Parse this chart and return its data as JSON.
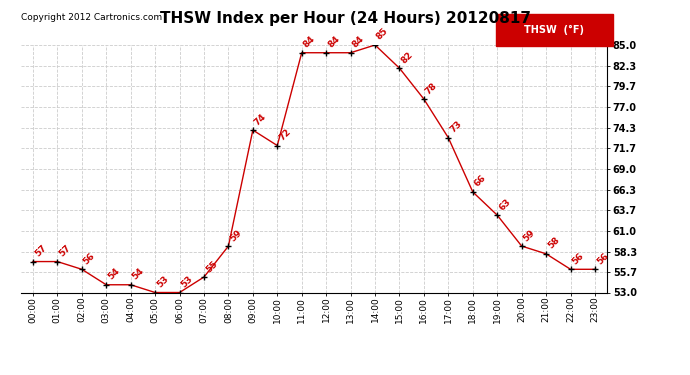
{
  "title": "THSW Index per Hour (24 Hours) 20120817",
  "copyright": "Copyright 2012 Cartronics.com",
  "legend_label": "THSW  (°F)",
  "hours": [
    "00:00",
    "01:00",
    "02:00",
    "03:00",
    "04:00",
    "05:00",
    "06:00",
    "07:00",
    "08:00",
    "09:00",
    "10:00",
    "11:00",
    "12:00",
    "13:00",
    "14:00",
    "15:00",
    "16:00",
    "17:00",
    "18:00",
    "19:00",
    "20:00",
    "21:00",
    "22:00",
    "23:00"
  ],
  "values": [
    57,
    57,
    56,
    54,
    54,
    53,
    53,
    55,
    59,
    74,
    72,
    84,
    84,
    84,
    85,
    82,
    78,
    73,
    66,
    63,
    59,
    58,
    56,
    56
  ],
  "ylim": [
    53.0,
    85.0
  ],
  "yticks": [
    53.0,
    55.7,
    58.3,
    61.0,
    63.7,
    66.3,
    69.0,
    71.7,
    74.3,
    77.0,
    79.7,
    82.3,
    85.0
  ],
  "line_color": "#cc0000",
  "marker_color": "#000000",
  "label_color": "#cc0000",
  "bg_color": "#ffffff",
  "grid_color": "#cccccc",
  "legend_bg": "#cc0000",
  "legend_text_color": "#ffffff",
  "title_fontsize": 11,
  "copyright_fontsize": 6.5,
  "label_fontsize": 6.5,
  "tick_fontsize": 7
}
